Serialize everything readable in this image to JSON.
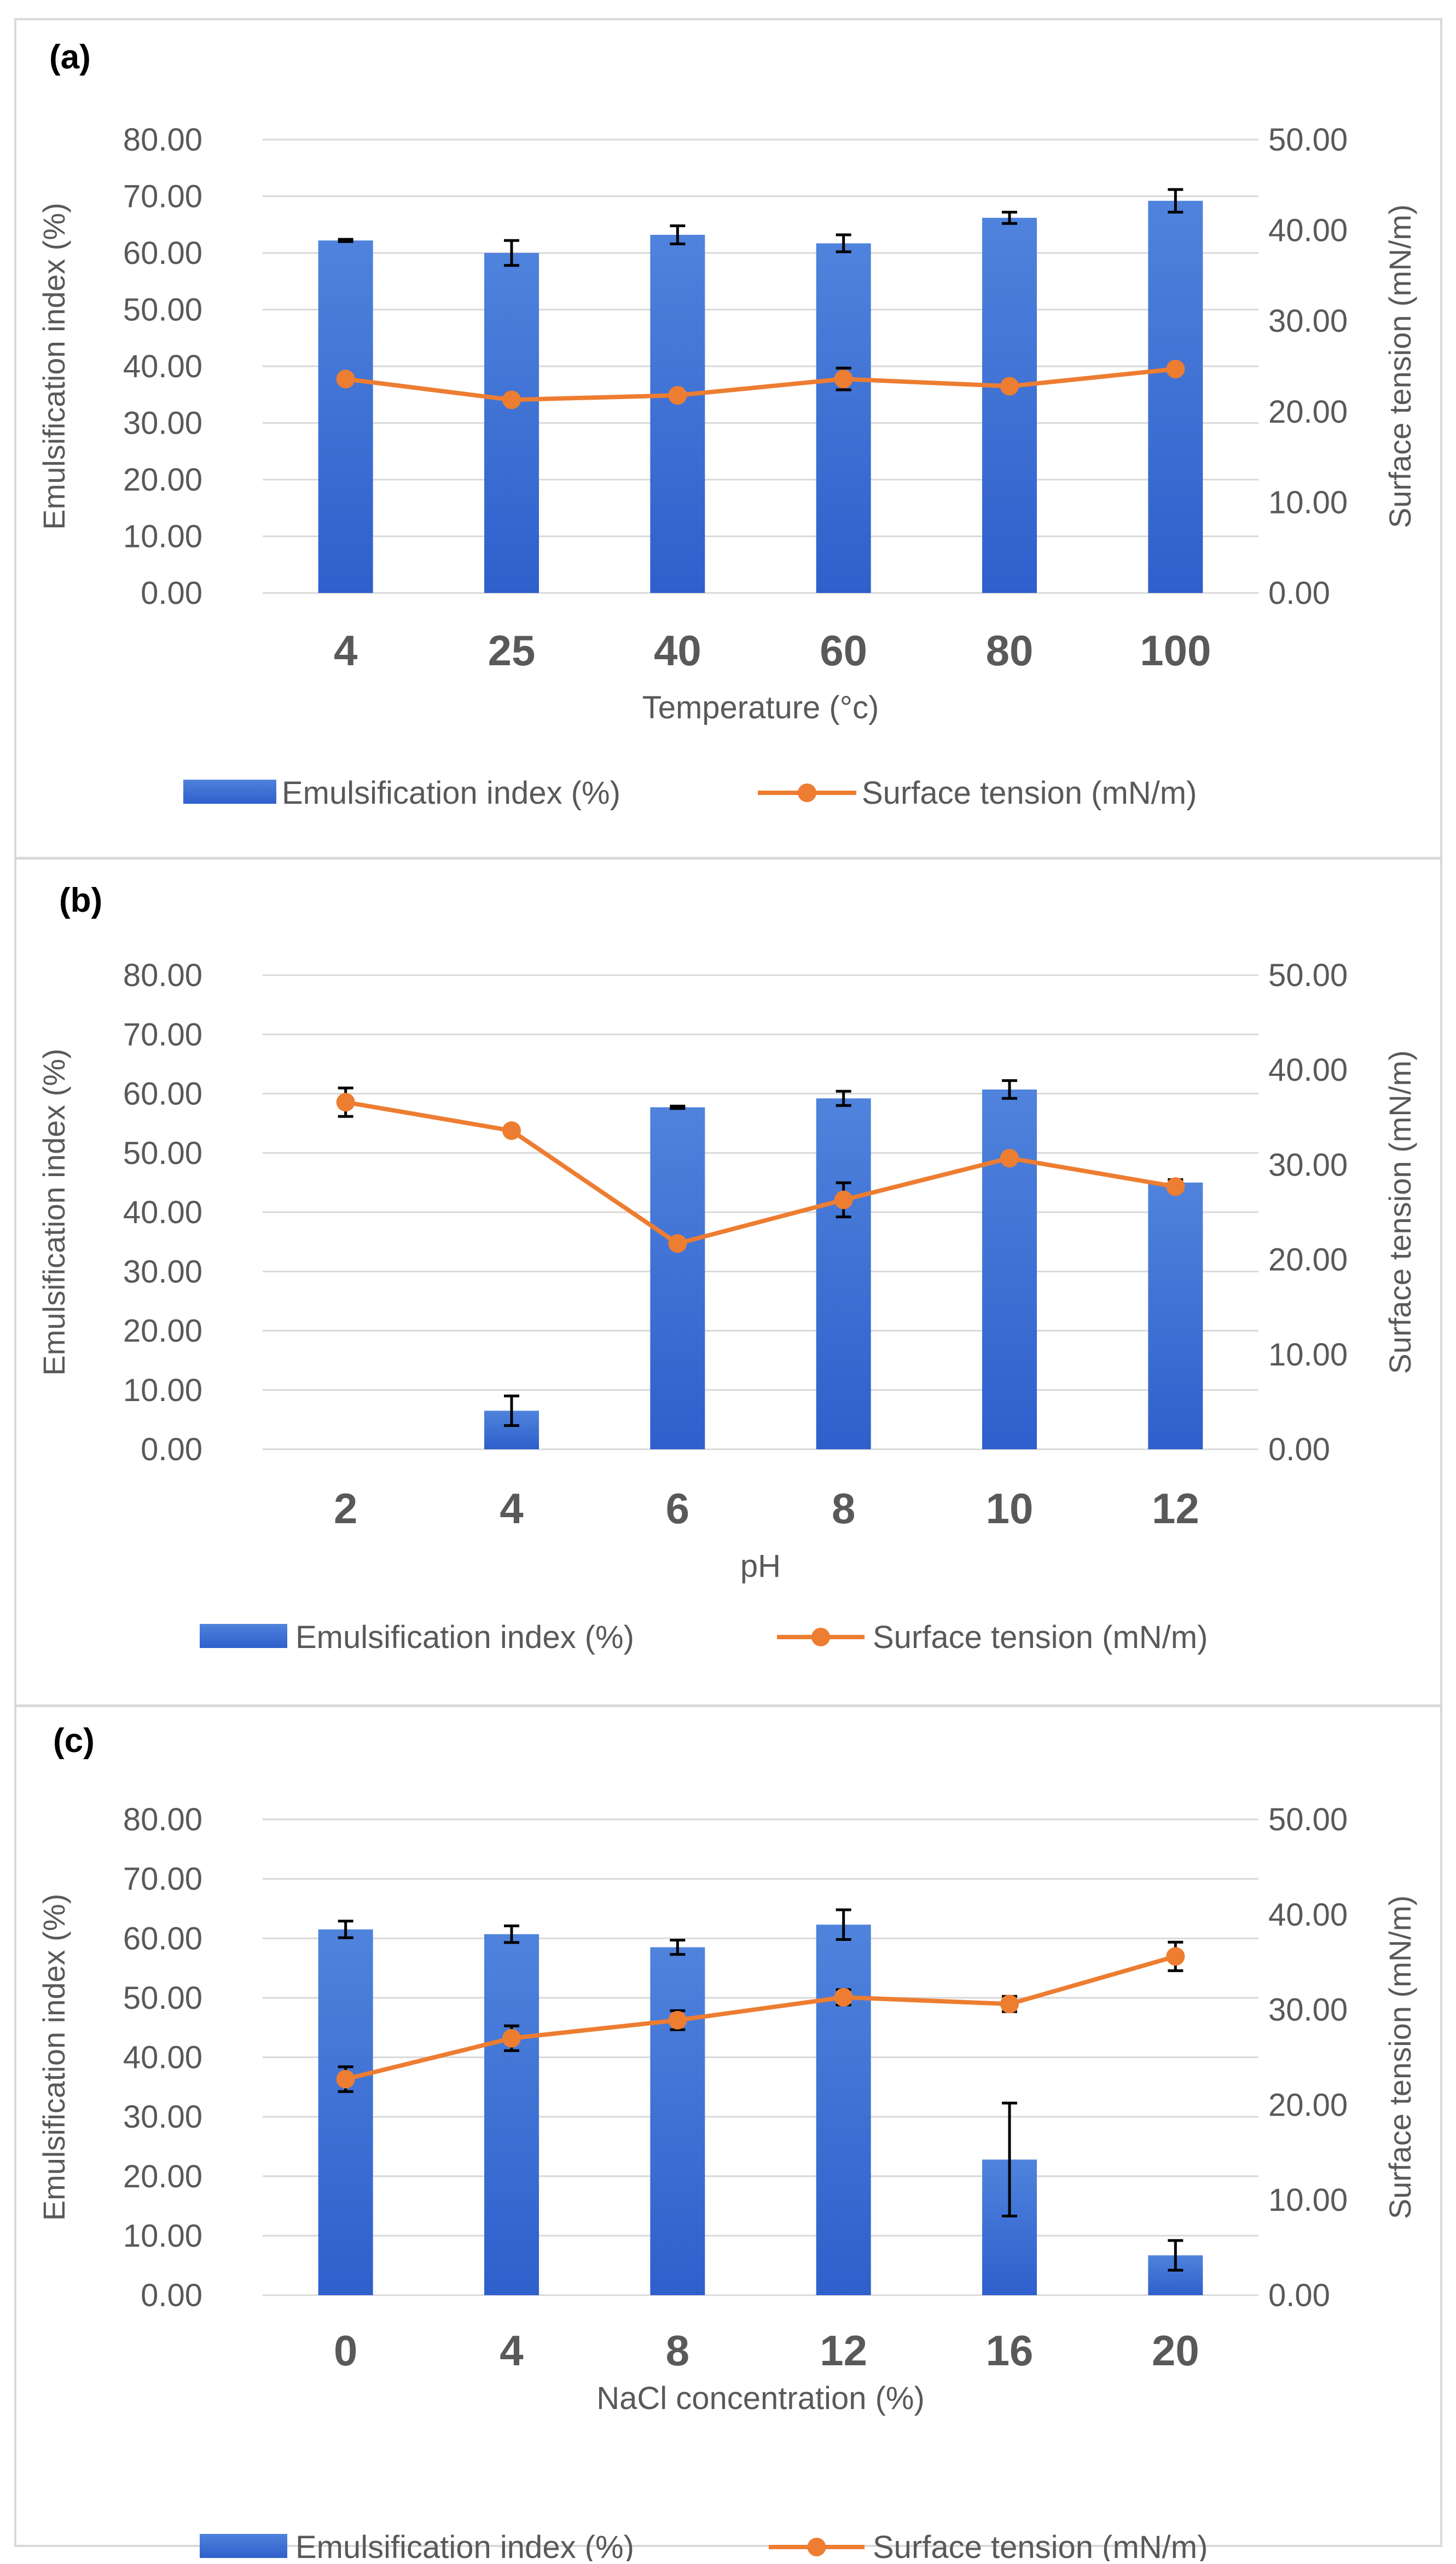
{
  "chart_data": [
    {
      "type": "bar",
      "panel_label": "(a)",
      "categories": [
        "4",
        "25",
        "40",
        "60",
        "80",
        "100"
      ],
      "xlabel": "Temperature (°c)",
      "ylabel": "Emulsification index (%)",
      "y2label": "Surface tension (mN/m)",
      "ylim": [
        0,
        80
      ],
      "y2lim": [
        0,
        50
      ],
      "yticks": [
        "0.00",
        "10.00",
        "20.00",
        "30.00",
        "40.00",
        "50.00",
        "60.00",
        "70.00",
        "80.00"
      ],
      "y2ticks": [
        "0.00",
        "10.00",
        "20.00",
        "30.00",
        "40.00",
        "50.00"
      ],
      "grid": true,
      "legend_position": "bottom",
      "series": [
        {
          "name": "Emulsification index (%)",
          "type": "bar",
          "axis": "left",
          "color": "#3a6fd8",
          "values": [
            62.2,
            60.0,
            63.2,
            61.7,
            66.2,
            69.2
          ],
          "errors": [
            0.2,
            2.2,
            1.6,
            1.5,
            1.0,
            2.0
          ]
        },
        {
          "name": "Surface tension (mN/m)",
          "type": "line",
          "axis": "right",
          "color": "#ed7d31",
          "values": [
            23.6,
            21.3,
            21.8,
            23.6,
            22.8,
            24.7
          ],
          "errors": [
            0,
            0,
            0,
            1.2,
            0,
            0
          ]
        }
      ]
    },
    {
      "type": "bar",
      "panel_label": "(b)",
      "categories": [
        "2",
        "4",
        "6",
        "8",
        "10",
        "12"
      ],
      "xlabel": "pH",
      "ylabel": "Emulsification index (%)",
      "y2label": "Surface tension (mN/m)",
      "ylim": [
        0,
        80
      ],
      "y2lim": [
        0,
        50
      ],
      "yticks": [
        "0.00",
        "10.00",
        "20.00",
        "30.00",
        "40.00",
        "50.00",
        "60.00",
        "70.00",
        "80.00"
      ],
      "y2ticks": [
        "0.00",
        "10.00",
        "20.00",
        "30.00",
        "40.00",
        "50.00"
      ],
      "grid": true,
      "legend_position": "bottom",
      "series": [
        {
          "name": "Emulsification index (%)",
          "type": "bar",
          "axis": "left",
          "color": "#3a6fd8",
          "values": [
            0,
            6.5,
            57.7,
            59.2,
            60.7,
            45.0
          ],
          "errors": [
            0,
            2.5,
            0.2,
            1.2,
            1.5,
            0.5
          ]
        },
        {
          "name": "Surface tension (mN/m)",
          "type": "line",
          "axis": "right",
          "color": "#ed7d31",
          "values": [
            36.6,
            33.6,
            21.7,
            26.3,
            30.7,
            27.7
          ],
          "errors": [
            1.5,
            0.3,
            0,
            1.8,
            0,
            0
          ]
        }
      ]
    },
    {
      "type": "bar",
      "panel_label": "(c)",
      "categories": [
        "0",
        "4",
        "8",
        "12",
        "16",
        "20"
      ],
      "xlabel": "NaCl concentration (%)",
      "ylabel": "Emulsification index (%)",
      "y2label": "Surface tension (mN/m)",
      "ylim": [
        0,
        80
      ],
      "y2lim": [
        0,
        50
      ],
      "yticks": [
        "0.00",
        "10.00",
        "20.00",
        "30.00",
        "40.00",
        "50.00",
        "60.00",
        "70.00",
        "80.00"
      ],
      "y2ticks": [
        "0.00",
        "10.00",
        "20.00",
        "30.00",
        "40.00",
        "50.00"
      ],
      "grid": true,
      "legend_position": "bottom",
      "series": [
        {
          "name": "Emulsification index (%)",
          "type": "bar",
          "axis": "left",
          "color": "#3a6fd8",
          "values": [
            61.5,
            60.7,
            58.5,
            62.3,
            22.8,
            6.7
          ],
          "errors": [
            1.4,
            1.4,
            1.2,
            2.5,
            9.5,
            2.5
          ]
        },
        {
          "name": "Surface tension (mN/m)",
          "type": "line",
          "axis": "right",
          "color": "#ed7d31",
          "values": [
            22.7,
            27.0,
            28.9,
            31.3,
            30.6,
            35.6
          ],
          "errors": [
            1.3,
            1.3,
            1.0,
            0.8,
            0.8,
            1.5
          ]
        }
      ]
    }
  ]
}
